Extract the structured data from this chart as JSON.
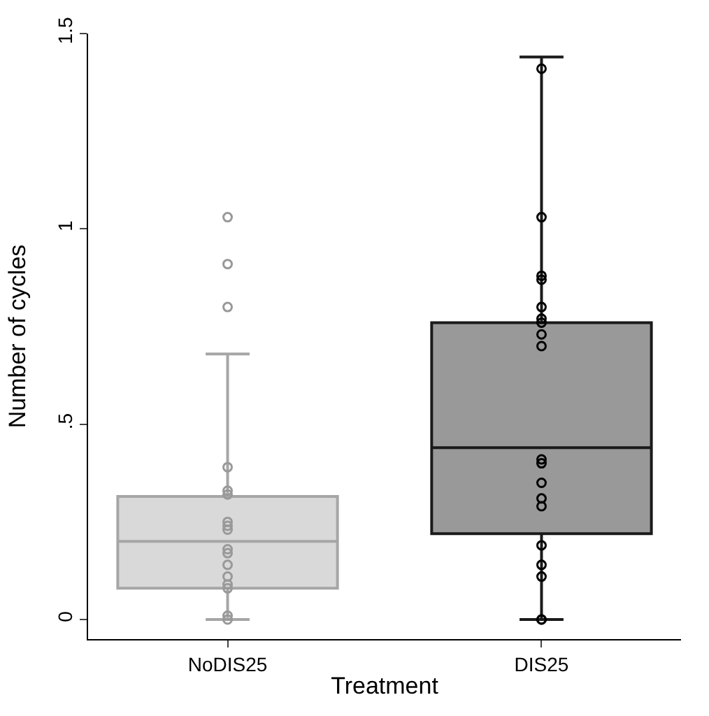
{
  "chart_data": {
    "type": "box",
    "xlabel": "Treatment",
    "ylabel": "Number of cycles",
    "categories": [
      "NoDIS25",
      "DIS25"
    ],
    "colors": [
      "#d9d9d9",
      "#999999"
    ],
    "boxes": [
      {
        "low": 0,
        "q1": 0.08,
        "median": 0.2,
        "q3": 0.315,
        "high": 0.68
      },
      {
        "low": 0,
        "q1": 0.22,
        "median": 0.44,
        "q3": 0.76,
        "high": 1.44
      }
    ],
    "series": [
      {
        "type": "scatter",
        "color": "#999999",
        "x": [
          "NoDIS25",
          "NoDIS25",
          "NoDIS25",
          "NoDIS25",
          "NoDIS25",
          "NoDIS25",
          "NoDIS25",
          "NoDIS25",
          "NoDIS25",
          "NoDIS25",
          "NoDIS25",
          "NoDIS25",
          "NoDIS25",
          "NoDIS25",
          "NoDIS25",
          "NoDIS25",
          "NoDIS25"
        ],
        "values": [
          1.03,
          0.91,
          0.8,
          0.39,
          0.33,
          0.32,
          0.25,
          0.24,
          0.23,
          0.18,
          0.17,
          0.14,
          0.11,
          0.09,
          0.08,
          0.01,
          0
        ]
      },
      {
        "type": "scatter",
        "color": "#000000",
        "x": [
          "DIS25",
          "DIS25",
          "DIS25",
          "DIS25",
          "DIS25",
          "DIS25",
          "DIS25",
          "DIS25",
          "DIS25",
          "DIS25",
          "DIS25",
          "DIS25",
          "DIS25",
          "DIS25",
          "DIS25",
          "DIS25",
          "DIS25",
          "DIS25",
          "DIS25"
        ],
        "values": [
          1.41,
          1.03,
          0.88,
          0.87,
          0.8,
          0.77,
          0.76,
          0.73,
          0.7,
          0.41,
          0.4,
          0.35,
          0.31,
          0.29,
          0.19,
          0.14,
          0.11,
          0,
          0
        ]
      }
    ],
    "marker": "circle",
    "ylim": [
      -0.05,
      1.5
    ],
    "yticks": [
      0,
      {
        "value": 0.5,
        "label": ".5"
      },
      1,
      1.5
    ]
  }
}
